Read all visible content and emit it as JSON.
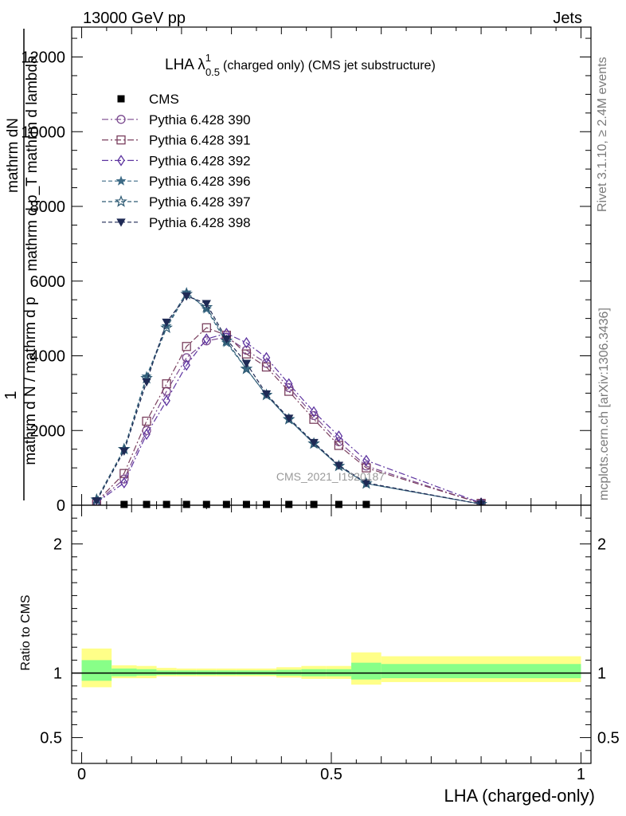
{
  "header": {
    "left": "13000 GeV pp",
    "right": "Jets"
  },
  "side_labels": {
    "rivet": "Rivet 3.1.10, ≥ 2.4M events",
    "mcplots": "mcplots.cern.ch [arXiv:1306.3436]"
  },
  "watermark": "CMS_2021_I1920187",
  "colors": {
    "band_outer": "#ffff88",
    "band_inner": "#88ff88",
    "s390": "#7b4a8f",
    "s391": "#7a3f5e",
    "s392": "#5e35a0",
    "s396": "#3d6b86",
    "s397": "#2d5a73",
    "s398": "#1f2a55"
  },
  "chart_data": [
    {
      "type": "line",
      "title_main": "LHA λ",
      "title_sup": "1",
      "title_sub": "0.5",
      "title_rest": "(charged only) (CMS jet substructure)",
      "ylabel_num": "mathrm dN",
      "ylabel_num2": "mathrm d p_T mathrm d lambda",
      "ylabel_num_prefix": "1",
      "ylabel_den": "mathrm d N / mathrm d p",
      "ylabel_den2": "mathrm d p_T",
      "ylabel_den_prefix": "mathrm d N / mathrm d p",
      "ylabel": "",
      "xlim": [
        -0.02,
        1.02
      ],
      "ylim": [
        0,
        12800
      ],
      "yticks": [
        {
          "v": 0,
          "label": "0"
        },
        {
          "v": 2000,
          "label": "2000"
        },
        {
          "v": 4000,
          "label": "4000"
        },
        {
          "v": 6000,
          "label": "6000"
        },
        {
          "v": 8000,
          "label": "8000"
        },
        {
          "v": 10000,
          "label": "10000"
        },
        {
          "v": 12000,
          "label": "12000"
        }
      ],
      "legend_position": "top-left",
      "cms": {
        "name": "CMS",
        "x": [
          0.085,
          0.13,
          0.17,
          0.21,
          0.25,
          0.29,
          0.33,
          0.37,
          0.415,
          0.465,
          0.515,
          0.57
        ],
        "y": [
          0,
          0,
          0,
          0,
          0,
          0,
          0,
          0,
          0,
          0,
          0,
          0
        ]
      },
      "x": [
        0.03,
        0.085,
        0.13,
        0.17,
        0.21,
        0.25,
        0.29,
        0.33,
        0.37,
        0.415,
        0.465,
        0.515,
        0.57,
        0.8
      ],
      "series": [
        {
          "name": "Pythia 6.428 390",
          "key": "s390",
          "marker": "circle",
          "dash": "8,3,2,3",
          "values": [
            80,
            700,
            2000,
            3050,
            3950,
            4400,
            4500,
            4150,
            3800,
            3150,
            2400,
            1700,
            1050,
            50
          ]
        },
        {
          "name": "Pythia 6.428 391",
          "key": "s391",
          "marker": "square",
          "dash": "8,3,2,3",
          "values": [
            90,
            850,
            2250,
            3250,
            4250,
            4750,
            4550,
            4050,
            3700,
            3050,
            2300,
            1600,
            1000,
            50
          ]
        },
        {
          "name": "Pythia 6.428 392",
          "key": "s392",
          "marker": "diamond",
          "dash": "8,3,2,3",
          "values": [
            70,
            600,
            1900,
            2800,
            3750,
            4450,
            4600,
            4350,
            3950,
            3250,
            2500,
            1850,
            1200,
            60
          ]
        },
        {
          "name": "Pythia 6.428 396",
          "key": "s396",
          "marker": "star",
          "dash": "5,3",
          "values": [
            150,
            1500,
            3450,
            4800,
            5700,
            5250,
            4350,
            3650,
            2950,
            2300,
            1650,
            1050,
            580,
            30
          ]
        },
        {
          "name": "Pythia 6.428 397",
          "key": "s397",
          "marker": "ostar",
          "dash": "5,3",
          "values": [
            150,
            1500,
            3400,
            4750,
            5650,
            5300,
            4400,
            3650,
            2950,
            2300,
            1650,
            1050,
            580,
            30
          ]
        },
        {
          "name": "Pythia 6.428 398",
          "key": "s398",
          "marker": "tri",
          "dash": "5,3",
          "values": [
            120,
            1450,
            3300,
            4900,
            5600,
            5400,
            4450,
            3800,
            2980,
            2330,
            1680,
            1070,
            600,
            30
          ]
        }
      ]
    },
    {
      "type": "area",
      "ylabel": "Ratio to CMS",
      "xlabel": "LHA (charged-only)",
      "xlim": [
        -0.02,
        1.02
      ],
      "ylim": [
        0.3,
        2.3
      ],
      "yticks": [
        {
          "v": 0.5,
          "label": "0.5"
        },
        {
          "v": 1,
          "label": "1"
        },
        {
          "v": 2,
          "label": "2"
        }
      ],
      "xticks": [
        {
          "v": 0,
          "label": "0"
        },
        {
          "v": 0.5,
          "label": "0.5"
        },
        {
          "v": 1,
          "label": "1"
        }
      ],
      "bins": [
        {
          "lo": 0.0,
          "hi": 0.06,
          "outer": [
            0.89,
            1.19
          ],
          "inner": [
            0.94,
            1.1
          ]
        },
        {
          "lo": 0.06,
          "hi": 0.11,
          "outer": [
            0.96,
            1.06
          ],
          "inner": [
            0.975,
            1.035
          ]
        },
        {
          "lo": 0.11,
          "hi": 0.15,
          "outer": [
            0.96,
            1.055
          ],
          "inner": [
            0.98,
            1.03
          ]
        },
        {
          "lo": 0.15,
          "hi": 0.19,
          "outer": [
            0.975,
            1.04
          ],
          "inner": [
            0.985,
            1.02
          ]
        },
        {
          "lo": 0.19,
          "hi": 0.23,
          "outer": [
            0.975,
            1.035
          ],
          "inner": [
            0.985,
            1.02
          ]
        },
        {
          "lo": 0.23,
          "hi": 0.27,
          "outer": [
            0.975,
            1.035
          ],
          "inner": [
            0.985,
            1.02
          ]
        },
        {
          "lo": 0.27,
          "hi": 0.31,
          "outer": [
            0.975,
            1.035
          ],
          "inner": [
            0.985,
            1.02
          ]
        },
        {
          "lo": 0.31,
          "hi": 0.35,
          "outer": [
            0.975,
            1.035
          ],
          "inner": [
            0.985,
            1.02
          ]
        },
        {
          "lo": 0.35,
          "hi": 0.39,
          "outer": [
            0.975,
            1.035
          ],
          "inner": [
            0.985,
            1.02
          ]
        },
        {
          "lo": 0.39,
          "hi": 0.44,
          "outer": [
            0.965,
            1.045
          ],
          "inner": [
            0.98,
            1.025
          ]
        },
        {
          "lo": 0.44,
          "hi": 0.49,
          "outer": [
            0.955,
            1.055
          ],
          "inner": [
            0.975,
            1.03
          ]
        },
        {
          "lo": 0.49,
          "hi": 0.54,
          "outer": [
            0.955,
            1.055
          ],
          "inner": [
            0.975,
            1.03
          ]
        },
        {
          "lo": 0.54,
          "hi": 0.6,
          "outer": [
            0.91,
            1.16
          ],
          "inner": [
            0.95,
            1.08
          ]
        },
        {
          "lo": 0.6,
          "hi": 1.0,
          "outer": [
            0.93,
            1.13
          ],
          "inner": [
            0.96,
            1.07
          ]
        }
      ]
    }
  ]
}
